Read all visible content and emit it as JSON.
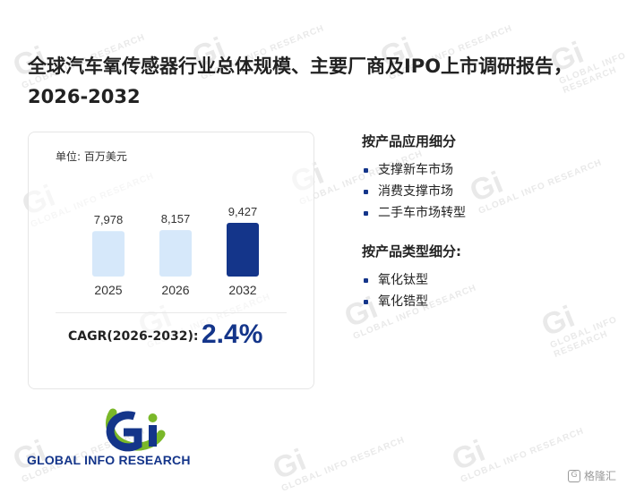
{
  "title": "全球汽车氧传感器行业总体规模、主要厂商及IPO上市调研报告，2026-2032",
  "unit_label": "单位: 百万美元",
  "chart_data": {
    "type": "bar",
    "title": "",
    "ylabel": "单位: 百万美元",
    "categories": [
      "2025",
      "2026",
      "2032"
    ],
    "values": [
      7978,
      8157,
      9427
    ],
    "value_labels": [
      "7,978",
      "8,157",
      "9,427"
    ],
    "colors": [
      "#d6e8fa",
      "#d6e8fa",
      "#14358a"
    ],
    "ylim": [
      0,
      10000
    ],
    "grid": false,
    "legend": "none"
  },
  "cagr": {
    "label": "CAGR(2026-2032):",
    "value": "2.4%"
  },
  "segments": {
    "application": {
      "heading": "按产品应用细分",
      "items": [
        "支撑新车市场",
        "消费支撑市场",
        "二手车市场转型"
      ]
    },
    "type": {
      "heading": "按产品类型细分:",
      "items": [
        "氧化钛型",
        "氧化锆型"
      ]
    }
  },
  "logo": {
    "text": "GLOBAL INFO RESEARCH",
    "mark": "Gi"
  },
  "watermark": {
    "mark": "Gi",
    "text": "GLOBAL INFO RESEARCH"
  },
  "corner_brand": "格隆汇",
  "colors": {
    "accent": "#14358a",
    "bar_light": "#d6e8fa",
    "logo_green": "#7ab829"
  }
}
